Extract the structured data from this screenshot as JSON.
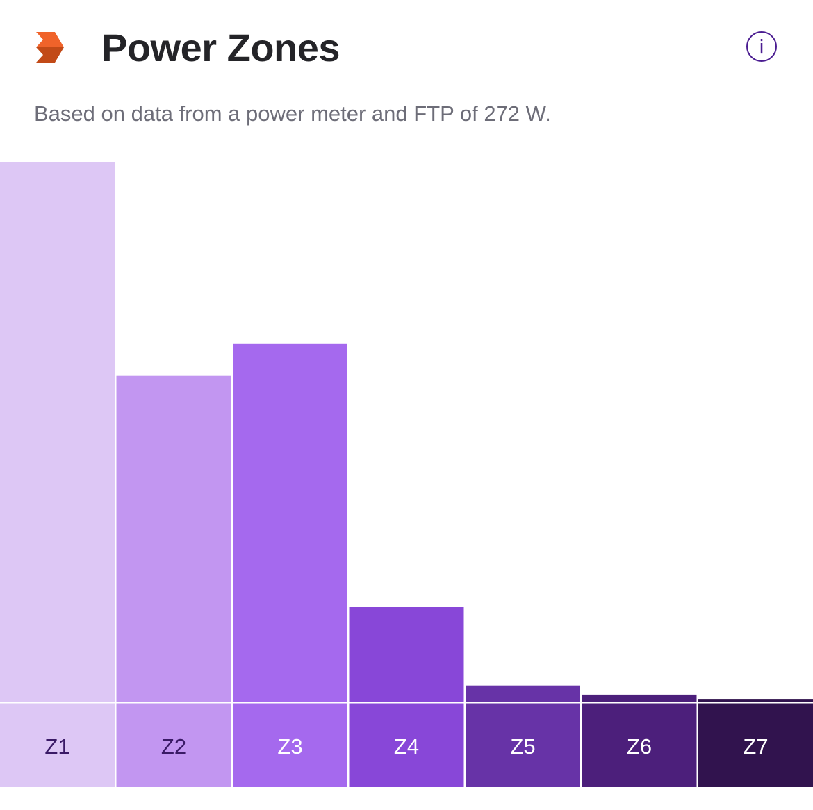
{
  "header": {
    "title": "Power Zones",
    "subtitle": "Based on data from a power meter and FTP of 272 W.",
    "info_icon": "info-icon",
    "brand_icon": "chevron-brand-icon"
  },
  "colors": {
    "brand": "#fc5200",
    "title": "#242428",
    "subtitle": "#6d6d78",
    "info": "#4b1d91"
  },
  "chart_data": {
    "type": "bar",
    "title": "Power Zones",
    "categories": [
      "Z1",
      "Z2",
      "Z3",
      "Z4",
      "Z5",
      "Z6",
      "Z7"
    ],
    "values": [
      100,
      60.4,
      66.3,
      17.5,
      3.0,
      1.3,
      0.5
    ],
    "value_unit": "percent of largest zone",
    "ylim": [
      0,
      100
    ],
    "xlabel": "",
    "ylabel": "",
    "grid": false,
    "bar_colors": [
      "#ddc7f5",
      "#c296f1",
      "#a569ee",
      "#8847d8",
      "#6733a7",
      "#4c1f7b",
      "#31134e"
    ],
    "label_colors": [
      "#3a1a66",
      "#3a1a66",
      "#ffffff",
      "#ffffff",
      "#ffffff",
      "#ffffff",
      "#ffffff"
    ]
  }
}
